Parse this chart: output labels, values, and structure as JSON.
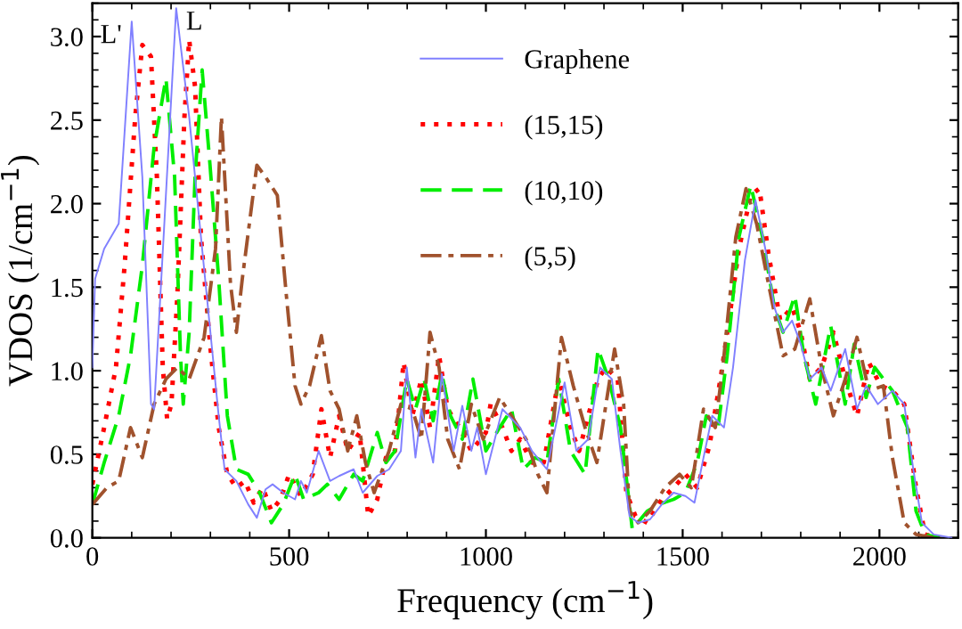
{
  "chart_data": {
    "type": "line",
    "xlabel": "Frequency (cm$^{−1}$)",
    "ylabel": "VDOS (1/cm$^{−1}$)",
    "xlim": [
      0,
      2200
    ],
    "ylim": [
      0,
      3.2
    ],
    "xticks": [
      0,
      500,
      1000,
      1500,
      2000
    ],
    "yticks": [
      {
        "value": 0,
        "label": "0.0"
      },
      {
        "value": 0.5,
        "label": "0.5"
      },
      {
        "value": 1,
        "label": "1.0"
      },
      {
        "value": 1.5,
        "label": "1.5"
      },
      {
        "value": 2,
        "label": "2.0"
      },
      {
        "value": 2.5,
        "label": "2.5"
      },
      {
        "value": 3,
        "label": "3.0"
      }
    ],
    "grid": false,
    "legend": "top",
    "marker": "none",
    "annotations": [
      {
        "text": "L'",
        "x": 100,
        "y": 3.09
      },
      {
        "text": "L",
        "x": 213,
        "y": 3.17
      }
    ],
    "series": [
      {
        "name": "Graphene",
        "color": "#8080ff",
        "line_style": "solid",
        "x": [
          0,
          7,
          30,
          67,
          100,
          127,
          149,
          157,
          213,
          246,
          276,
          321,
          336,
          366,
          396,
          418,
          440,
          458,
          485,
          515,
          530,
          545,
          575,
          604,
          627,
          664,
          687,
          724,
          754,
          784,
          799,
          821,
          836,
          866,
          888,
          918,
          940,
          963,
          978,
          1000,
          1042,
          1087,
          1117,
          1155,
          1200,
          1230,
          1260,
          1290,
          1320,
          1342,
          1365,
          1387,
          1417,
          1447,
          1477,
          1507,
          1530,
          1553,
          1575,
          1605,
          1628,
          1658,
          1685,
          1710,
          1733,
          1755,
          1778,
          1800,
          1823,
          1853,
          1876,
          1913,
          1943,
          1966,
          1996,
          2033,
          2063,
          2086,
          2108,
          2138,
          2183
        ],
        "values": [
          1.02,
          1.55,
          1.73,
          1.88,
          3.09,
          2.16,
          0.8,
          0.77,
          3.17,
          2.52,
          1.8,
          0.73,
          0.41,
          0.34,
          0.2,
          0.12,
          0.29,
          0.32,
          0.27,
          0.23,
          0.34,
          0.27,
          0.52,
          0.34,
          0.37,
          0.41,
          0.27,
          0.37,
          0.41,
          0.52,
          1.02,
          0.48,
          0.77,
          0.45,
          0.98,
          0.52,
          0.79,
          0.52,
          0.66,
          0.38,
          0.77,
          0.66,
          0.52,
          0.41,
          0.93,
          0.52,
          0.59,
          1.02,
          0.95,
          0.52,
          0.13,
          0.09,
          0.11,
          0.2,
          0.27,
          0.25,
          0.21,
          0.48,
          0.73,
          0.66,
          1.02,
          1.66,
          2.02,
          1.73,
          1.38,
          1.23,
          1.3,
          1.16,
          0.95,
          1.02,
          0.88,
          1.13,
          0.77,
          0.91,
          0.8,
          0.88,
          0.8,
          0.41,
          0.09,
          0.02,
          0
        ]
      },
      {
        "name": "(15,15)",
        "color": "#ff0000",
        "line_style": "dotted",
        "x": [
          0,
          30,
          60,
          82,
          109,
          127,
          149,
          164,
          179,
          190,
          201,
          216,
          234,
          246,
          261,
          276,
          299,
          321,
          343,
          366,
          388,
          410,
          433,
          455,
          478,
          500,
          530,
          560,
          582,
          604,
          627,
          649,
          679,
          701,
          724,
          746,
          769,
          791,
          813,
          836,
          858,
          881,
          903,
          933,
          963,
          1000,
          1012,
          1042,
          1065,
          1087,
          1117,
          1147,
          1185,
          1215,
          1237,
          1260,
          1285,
          1305,
          1335,
          1357,
          1380,
          1410,
          1447,
          1477,
          1507,
          1537,
          1568,
          1598,
          1620,
          1643,
          1673,
          1695,
          1718,
          1748,
          1778,
          1800,
          1823,
          1853,
          1883,
          1913,
          1943,
          1973,
          2003,
          2033,
          2063,
          2093,
          2116,
          2153
        ],
        "values": [
          0.32,
          0.66,
          1.02,
          1.63,
          2.52,
          2.95,
          2.88,
          2.16,
          1.02,
          0.71,
          0.8,
          1.45,
          2.52,
          2.98,
          2.7,
          1.8,
          1.16,
          0.66,
          0.38,
          0.3,
          0.34,
          0.21,
          0.3,
          0.16,
          0.23,
          0.38,
          0.25,
          0.38,
          0.77,
          0.48,
          0.73,
          0.52,
          0.63,
          0.13,
          0.23,
          0.48,
          0.52,
          1.05,
          0.73,
          0.95,
          0.66,
          1.09,
          0.77,
          0.66,
          0.52,
          0.63,
          0.8,
          0.66,
          0.52,
          0.59,
          0.45,
          0.45,
          0.95,
          0.66,
          0.52,
          0.73,
          0.95,
          1.02,
          0.95,
          0.27,
          0.13,
          0.09,
          0.23,
          0.3,
          0.38,
          0.3,
          0.55,
          0.98,
          1.34,
          1.73,
          2.05,
          2.09,
          1.7,
          1.3,
          1.38,
          1.23,
          0.95,
          1.02,
          1.23,
          0.95,
          0.73,
          1.05,
          0.91,
          0.88,
          0.8,
          0.3,
          0.02,
          0
        ]
      },
      {
        "name": "(10,10)",
        "color": "#00ee00",
        "line_style": "dashed",
        "x": [
          0,
          30,
          67,
          97,
          127,
          157,
          187,
          209,
          224,
          231,
          246,
          261,
          279,
          299,
          321,
          343,
          366,
          396,
          425,
          455,
          485,
          515,
          537,
          575,
          597,
          627,
          664,
          687,
          724,
          746,
          769,
          799,
          821,
          843,
          866,
          888,
          910,
          940,
          967,
          1000,
          1035,
          1065,
          1095,
          1125,
          1155,
          1185,
          1215,
          1252,
          1285,
          1312,
          1342,
          1372,
          1410,
          1440,
          1477,
          1507,
          1537,
          1560,
          1590,
          1613,
          1643,
          1673,
          1703,
          1733,
          1755,
          1785,
          1808,
          1838,
          1876,
          1913,
          1936,
          1966,
          1988,
          2033,
          2071,
          2093,
          2116,
          2153
        ],
        "values": [
          0.2,
          0.45,
          0.73,
          1.09,
          1.63,
          2.34,
          2.75,
          2.16,
          1.09,
          0.8,
          1.23,
          2.16,
          2.8,
          2.23,
          1.55,
          0.73,
          0.41,
          0.38,
          0.27,
          0.09,
          0.2,
          0.38,
          0.23,
          0.27,
          0.32,
          0.23,
          0.38,
          0.34,
          0.63,
          0.45,
          0.52,
          0.95,
          0.77,
          0.95,
          0.7,
          0.98,
          0.73,
          0.59,
          0.95,
          0.52,
          0.66,
          0.77,
          0.41,
          0.48,
          0.45,
          0.95,
          0.52,
          0.38,
          1.13,
          0.95,
          0.66,
          0.05,
          0.16,
          0.2,
          0.23,
          0.27,
          0.45,
          0.73,
          0.66,
          1.09,
          1.8,
          2.11,
          1.8,
          1.38,
          1.23,
          1.45,
          1.09,
          0.8,
          1.27,
          0.8,
          1.16,
          0.84,
          1.02,
          0.88,
          0.66,
          0.16,
          0.02,
          0
        ]
      },
      {
        "name": "(5,5)",
        "color": "#a0522d",
        "line_style": "dashdot",
        "x": [
          0,
          37,
          67,
          97,
          127,
          157,
          187,
          216,
          246,
          284,
          313,
          328,
          351,
          366,
          381,
          418,
          440,
          470,
          493,
          515,
          530,
          552,
          582,
          604,
          627,
          649,
          672,
          694,
          716,
          754,
          784,
          813,
          836,
          858,
          881,
          903,
          933,
          963,
          993,
          1035,
          1065,
          1102,
          1132,
          1155,
          1192,
          1222,
          1252,
          1282,
          1327,
          1350,
          1365,
          1387,
          1417,
          1455,
          1492,
          1522,
          1553,
          1583,
          1605,
          1635,
          1661,
          1688,
          1718,
          1755,
          1785,
          1823,
          1853,
          1883,
          1913,
          1943,
          1973,
          2010,
          2033,
          2063,
          2093,
          2138
        ],
        "values": [
          0.2,
          0.3,
          0.34,
          0.66,
          0.48,
          0.8,
          0.95,
          1.02,
          0.95,
          1.2,
          1.73,
          2.52,
          1.52,
          1.23,
          1.55,
          2.23,
          2.16,
          2.05,
          1.45,
          0.91,
          0.8,
          0.91,
          1.21,
          0.88,
          0.77,
          0.52,
          0.73,
          0.45,
          0.27,
          0.52,
          0.8,
          0.77,
          0.59,
          1.23,
          1.02,
          0.59,
          0.41,
          0.8,
          0.59,
          0.84,
          0.73,
          0.59,
          0.38,
          0.27,
          1.2,
          0.91,
          0.66,
          0.45,
          1.13,
          0.8,
          0.16,
          0.09,
          0.16,
          0.3,
          0.38,
          0.3,
          0.77,
          0.66,
          1.09,
          1.8,
          2.09,
          1.88,
          1.52,
          1.09,
          1.13,
          1.43,
          1.02,
          0.73,
          0.95,
          1.2,
          0.88,
          0.91,
          0.48,
          0.09,
          0.02,
          0
        ]
      }
    ]
  }
}
